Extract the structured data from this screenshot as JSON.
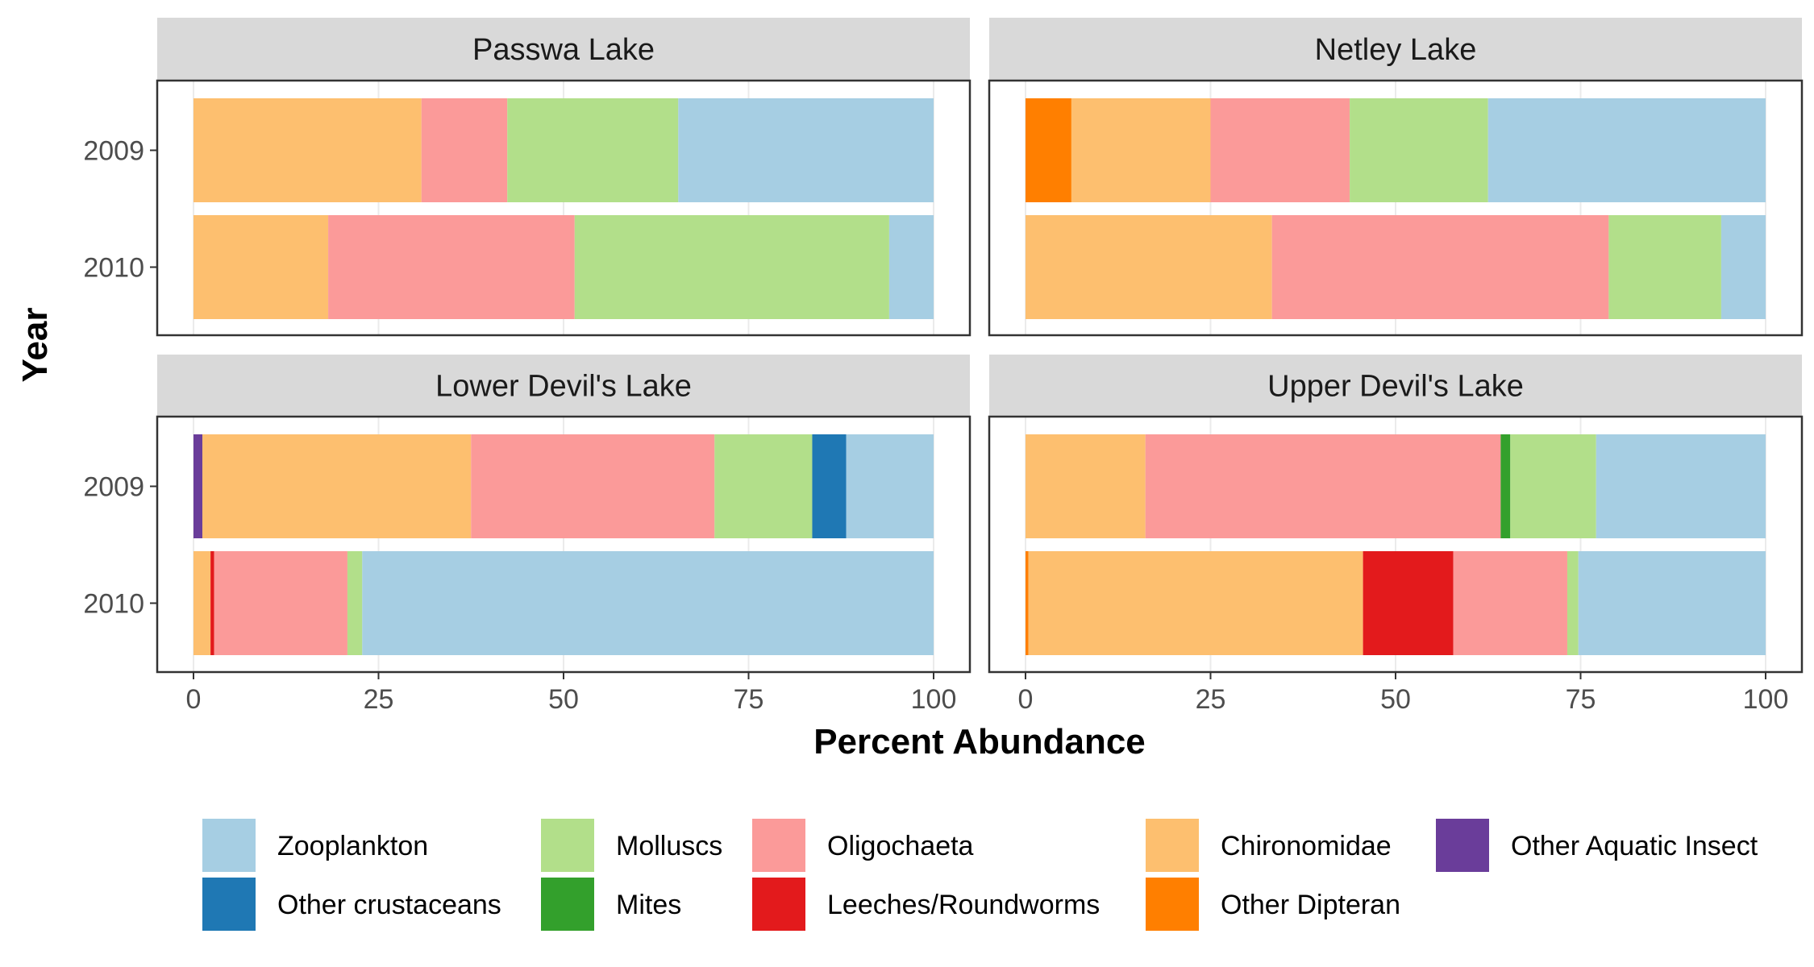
{
  "chart_data": {
    "type": "bar",
    "orientation": "horizontal",
    "stacked": true,
    "xlabel": "Percent Abundance",
    "ylabel": "Year",
    "xlim": [
      0,
      100
    ],
    "xticks": [
      0,
      25,
      50,
      75,
      100
    ],
    "years": [
      "2009",
      "2010"
    ],
    "legend_position": "bottom",
    "categories": [
      {
        "name": "Zooplankton",
        "color": "#A6CEE3"
      },
      {
        "name": "Other crustaceans",
        "color": "#1F78B4"
      },
      {
        "name": "Molluscs",
        "color": "#B2DF8A"
      },
      {
        "name": "Mites",
        "color": "#33A02C"
      },
      {
        "name": "Oligochaeta",
        "color": "#FB9A99"
      },
      {
        "name": "Leeches/Roundworms",
        "color": "#E31A1C"
      },
      {
        "name": "Chironomidae",
        "color": "#FDBF6F"
      },
      {
        "name": "Other Dipteran",
        "color": "#FF7F00"
      },
      {
        "name": "Other Aquatic Insect",
        "color": "#6A3D9A"
      }
    ],
    "stack_order": [
      "Other Aquatic Insect",
      "Other Dipteran",
      "Chironomidae",
      "Leeches/Roundworms",
      "Oligochaeta",
      "Mites",
      "Molluscs",
      "Other crustaceans",
      "Zooplankton"
    ],
    "panels": [
      {
        "title": "Passwa Lake",
        "bars": [
          {
            "year": "2009",
            "values": {
              "Chironomidae": 30.8,
              "Oligochaeta": 11.6,
              "Molluscs": 23.1,
              "Zooplankton": 34.5
            }
          },
          {
            "year": "2010",
            "values": {
              "Chironomidae": 18.2,
              "Oligochaeta": 33.3,
              "Molluscs": 42.5,
              "Zooplankton": 6.0
            }
          }
        ]
      },
      {
        "title": "Netley Lake",
        "bars": [
          {
            "year": "2009",
            "values": {
              "Other Dipteran": 6.2,
              "Chironomidae": 18.8,
              "Oligochaeta": 18.8,
              "Molluscs": 18.7,
              "Zooplankton": 37.5
            }
          },
          {
            "year": "2010",
            "values": {
              "Chironomidae": 33.3,
              "Oligochaeta": 45.5,
              "Molluscs": 15.2,
              "Zooplankton": 6.0
            }
          }
        ]
      },
      {
        "title": "Lower Devil's Lake",
        "bars": [
          {
            "year": "2009",
            "values": {
              "Other Aquatic Insect": 1.2,
              "Chironomidae": 36.3,
              "Oligochaeta": 32.9,
              "Molluscs": 13.2,
              "Other crustaceans": 4.6,
              "Zooplankton": 11.8
            }
          },
          {
            "year": "2010",
            "values": {
              "Chironomidae": 2.3,
              "Leeches/Roundworms": 0.5,
              "Oligochaeta": 18.0,
              "Molluscs": 2.0,
              "Zooplankton": 77.2
            }
          }
        ]
      },
      {
        "title": "Upper Devil's Lake",
        "bars": [
          {
            "year": "2009",
            "values": {
              "Chironomidae": 16.2,
              "Oligochaeta": 48.0,
              "Mites": 1.3,
              "Molluscs": 11.6,
              "Zooplankton": 22.9
            }
          },
          {
            "year": "2010",
            "values": {
              "Other Dipteran": 0.4,
              "Chironomidae": 45.2,
              "Leeches/Roundworms": 12.2,
              "Oligochaeta": 15.4,
              "Molluscs": 1.5,
              "Zooplankton": 25.3
            }
          }
        ]
      }
    ]
  }
}
